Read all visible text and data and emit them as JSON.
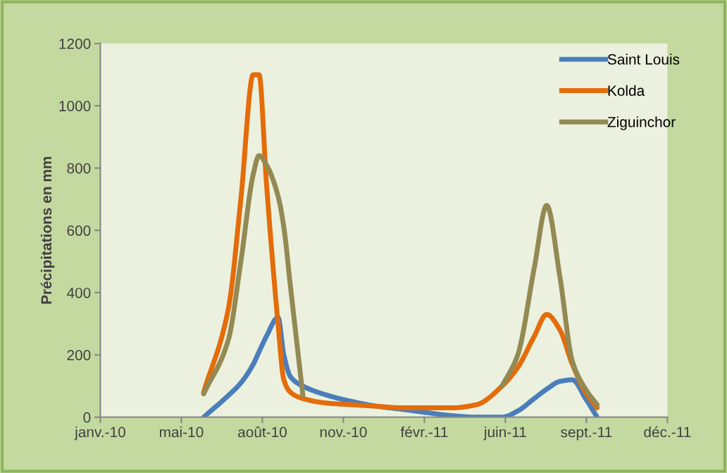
{
  "chart_data": {
    "type": "line",
    "ylabel": "Précipitations en mm",
    "x": [
      "2010-06-05",
      "2010-07-05",
      "2010-07-20",
      "2010-08-04",
      "2010-08-11",
      "2010-08-20",
      "2010-09-03",
      "2010-09-10",
      "2010-09-18",
      "2010-10-03",
      "2010-11-02",
      "2010-12-02",
      "2011-01-01",
      "2011-02-01",
      "2011-03-01",
      "2011-04-01",
      "2011-05-01",
      "2011-06-01",
      "2011-06-20",
      "2011-07-10",
      "2011-07-25",
      "2011-08-10",
      "2011-08-25",
      "2011-09-10",
      "2011-09-24"
    ],
    "series": [
      {
        "name": "Saint Louis",
        "color": "#4a7ebb",
        "values": [
          0,
          70,
          110,
          170,
          210,
          260,
          320,
          200,
          130,
          100,
          70,
          50,
          35,
          25,
          15,
          5,
          0,
          0,
          20,
          60,
          90,
          115,
          120,
          60,
          0
        ]
      },
      {
        "name": "Kolda",
        "color": "#e46c0a",
        "values": [
          80,
          350,
          700,
          1100,
          1100,
          750,
          300,
          120,
          80,
          60,
          45,
          40,
          35,
          30,
          30,
          30,
          40,
          100,
          160,
          260,
          330,
          280,
          170,
          80,
          30
        ]
      },
      {
        "name": "Ziguinchor",
        "color": "#938953",
        "values": [
          75,
          250,
          500,
          780,
          840,
          810,
          710,
          610,
          420,
          70,
          null,
          null,
          null,
          null,
          null,
          null,
          null,
          100,
          200,
          480,
          680,
          450,
          180,
          90,
          40
        ]
      }
    ],
    "xlim": [
      "2010-01-31",
      "2011-12-18"
    ],
    "xticks": [
      {
        "value": "2010-01-31",
        "label": "janv.-10"
      },
      {
        "value": "2010-05-09",
        "label": "mai-10"
      },
      {
        "value": "2010-08-15",
        "label": "août-10"
      },
      {
        "value": "2010-11-21",
        "label": "nov.-10"
      },
      {
        "value": "2011-02-27",
        "label": "févr.-11"
      },
      {
        "value": "2011-06-05",
        "label": "juin-11"
      },
      {
        "value": "2011-09-11",
        "label": "sept.-11"
      },
      {
        "value": "2011-12-18",
        "label": "déc.-11"
      }
    ],
    "ylim": [
      0,
      1200
    ],
    "yticks": [
      0,
      200,
      400,
      600,
      800,
      1000,
      1200
    ],
    "grid": false,
    "legend": "top right",
    "marker": "none",
    "line_style": "solid"
  }
}
